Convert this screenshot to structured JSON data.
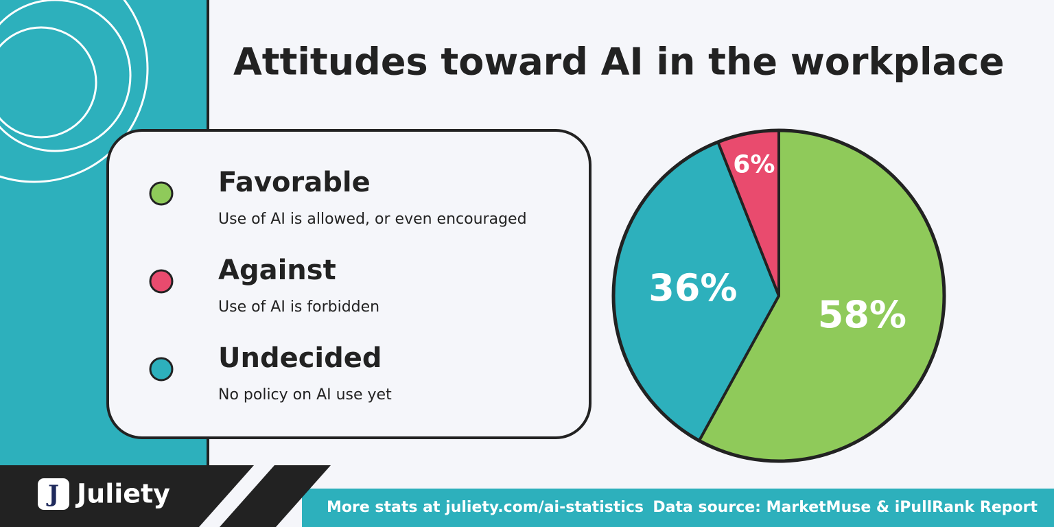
{
  "chart_data": {
    "type": "pie",
    "title": "Attitudes toward AI in the workplace",
    "categories": [
      "Favorable",
      "Undecided",
      "Against"
    ],
    "descriptions": [
      "Use of AI is allowed, or even encouraged",
      "No policy on AI use yet",
      "Use of AI is forbidden"
    ],
    "values": [
      58,
      36,
      6
    ],
    "value_labels": [
      "58%",
      "36%",
      "6%"
    ],
    "colors": [
      "#8fca5a",
      "#2db0bc",
      "#e94b6e"
    ]
  },
  "footer": {
    "brand": "Juliety",
    "link": "More stats at juliety.com/ai-statistics",
    "source": "Data source: MarketMuse & iPullRank Report"
  }
}
